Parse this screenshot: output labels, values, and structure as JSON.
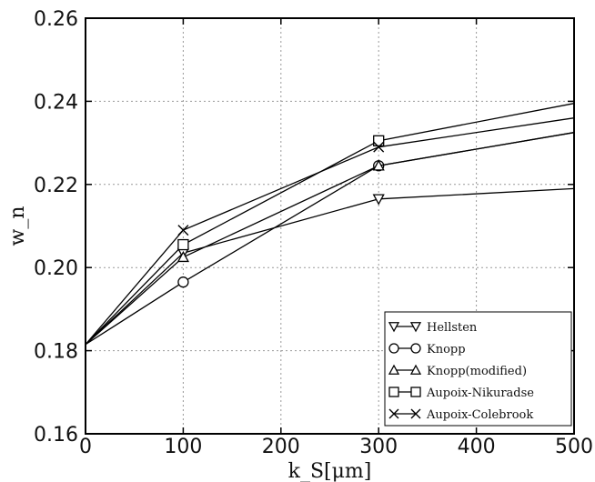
{
  "chart_data": {
    "type": "line",
    "xlabel": "k_S[μm]",
    "ylabel": "w_n",
    "xlim": [
      0,
      500
    ],
    "ylim": [
      0.16,
      0.26
    ],
    "xticks": [
      0,
      100,
      200,
      300,
      400,
      500
    ],
    "yticks": [
      0.16,
      0.18,
      0.2,
      0.22,
      0.24,
      0.26
    ],
    "xtick_labels": [
      "0",
      "100",
      "200",
      "300",
      "400",
      "500"
    ],
    "ytick_labels": [
      "0.16",
      "0.18",
      "0.20",
      "0.22",
      "0.24",
      "0.26"
    ],
    "grid": true,
    "legend_position": "bottom-right",
    "series": [
      {
        "name": "Hellsten",
        "marker": "triangle-down",
        "x": [
          0,
          100,
          300,
          500
        ],
        "y": [
          0.1815,
          0.2035,
          0.2165,
          0.219
        ]
      },
      {
        "name": "Knopp",
        "marker": "circle",
        "x": [
          0,
          100,
          300,
          500
        ],
        "y": [
          0.1815,
          0.1965,
          0.2245,
          0.2325
        ]
      },
      {
        "name": "Knopp(modified)",
        "marker": "triangle-up",
        "x": [
          0,
          100,
          300,
          500
        ],
        "y": [
          0.1815,
          0.2025,
          0.2245,
          0.2325
        ]
      },
      {
        "name": "Aupoix-Nikuradse",
        "marker": "square",
        "x": [
          0,
          100,
          300,
          500
        ],
        "y": [
          0.1815,
          0.2055,
          0.2305,
          0.2395
        ]
      },
      {
        "name": "Aupoix-Colebrook",
        "marker": "x",
        "x": [
          0,
          100,
          300,
          500
        ],
        "y": [
          0.1815,
          0.209,
          0.229,
          0.236
        ]
      }
    ]
  }
}
